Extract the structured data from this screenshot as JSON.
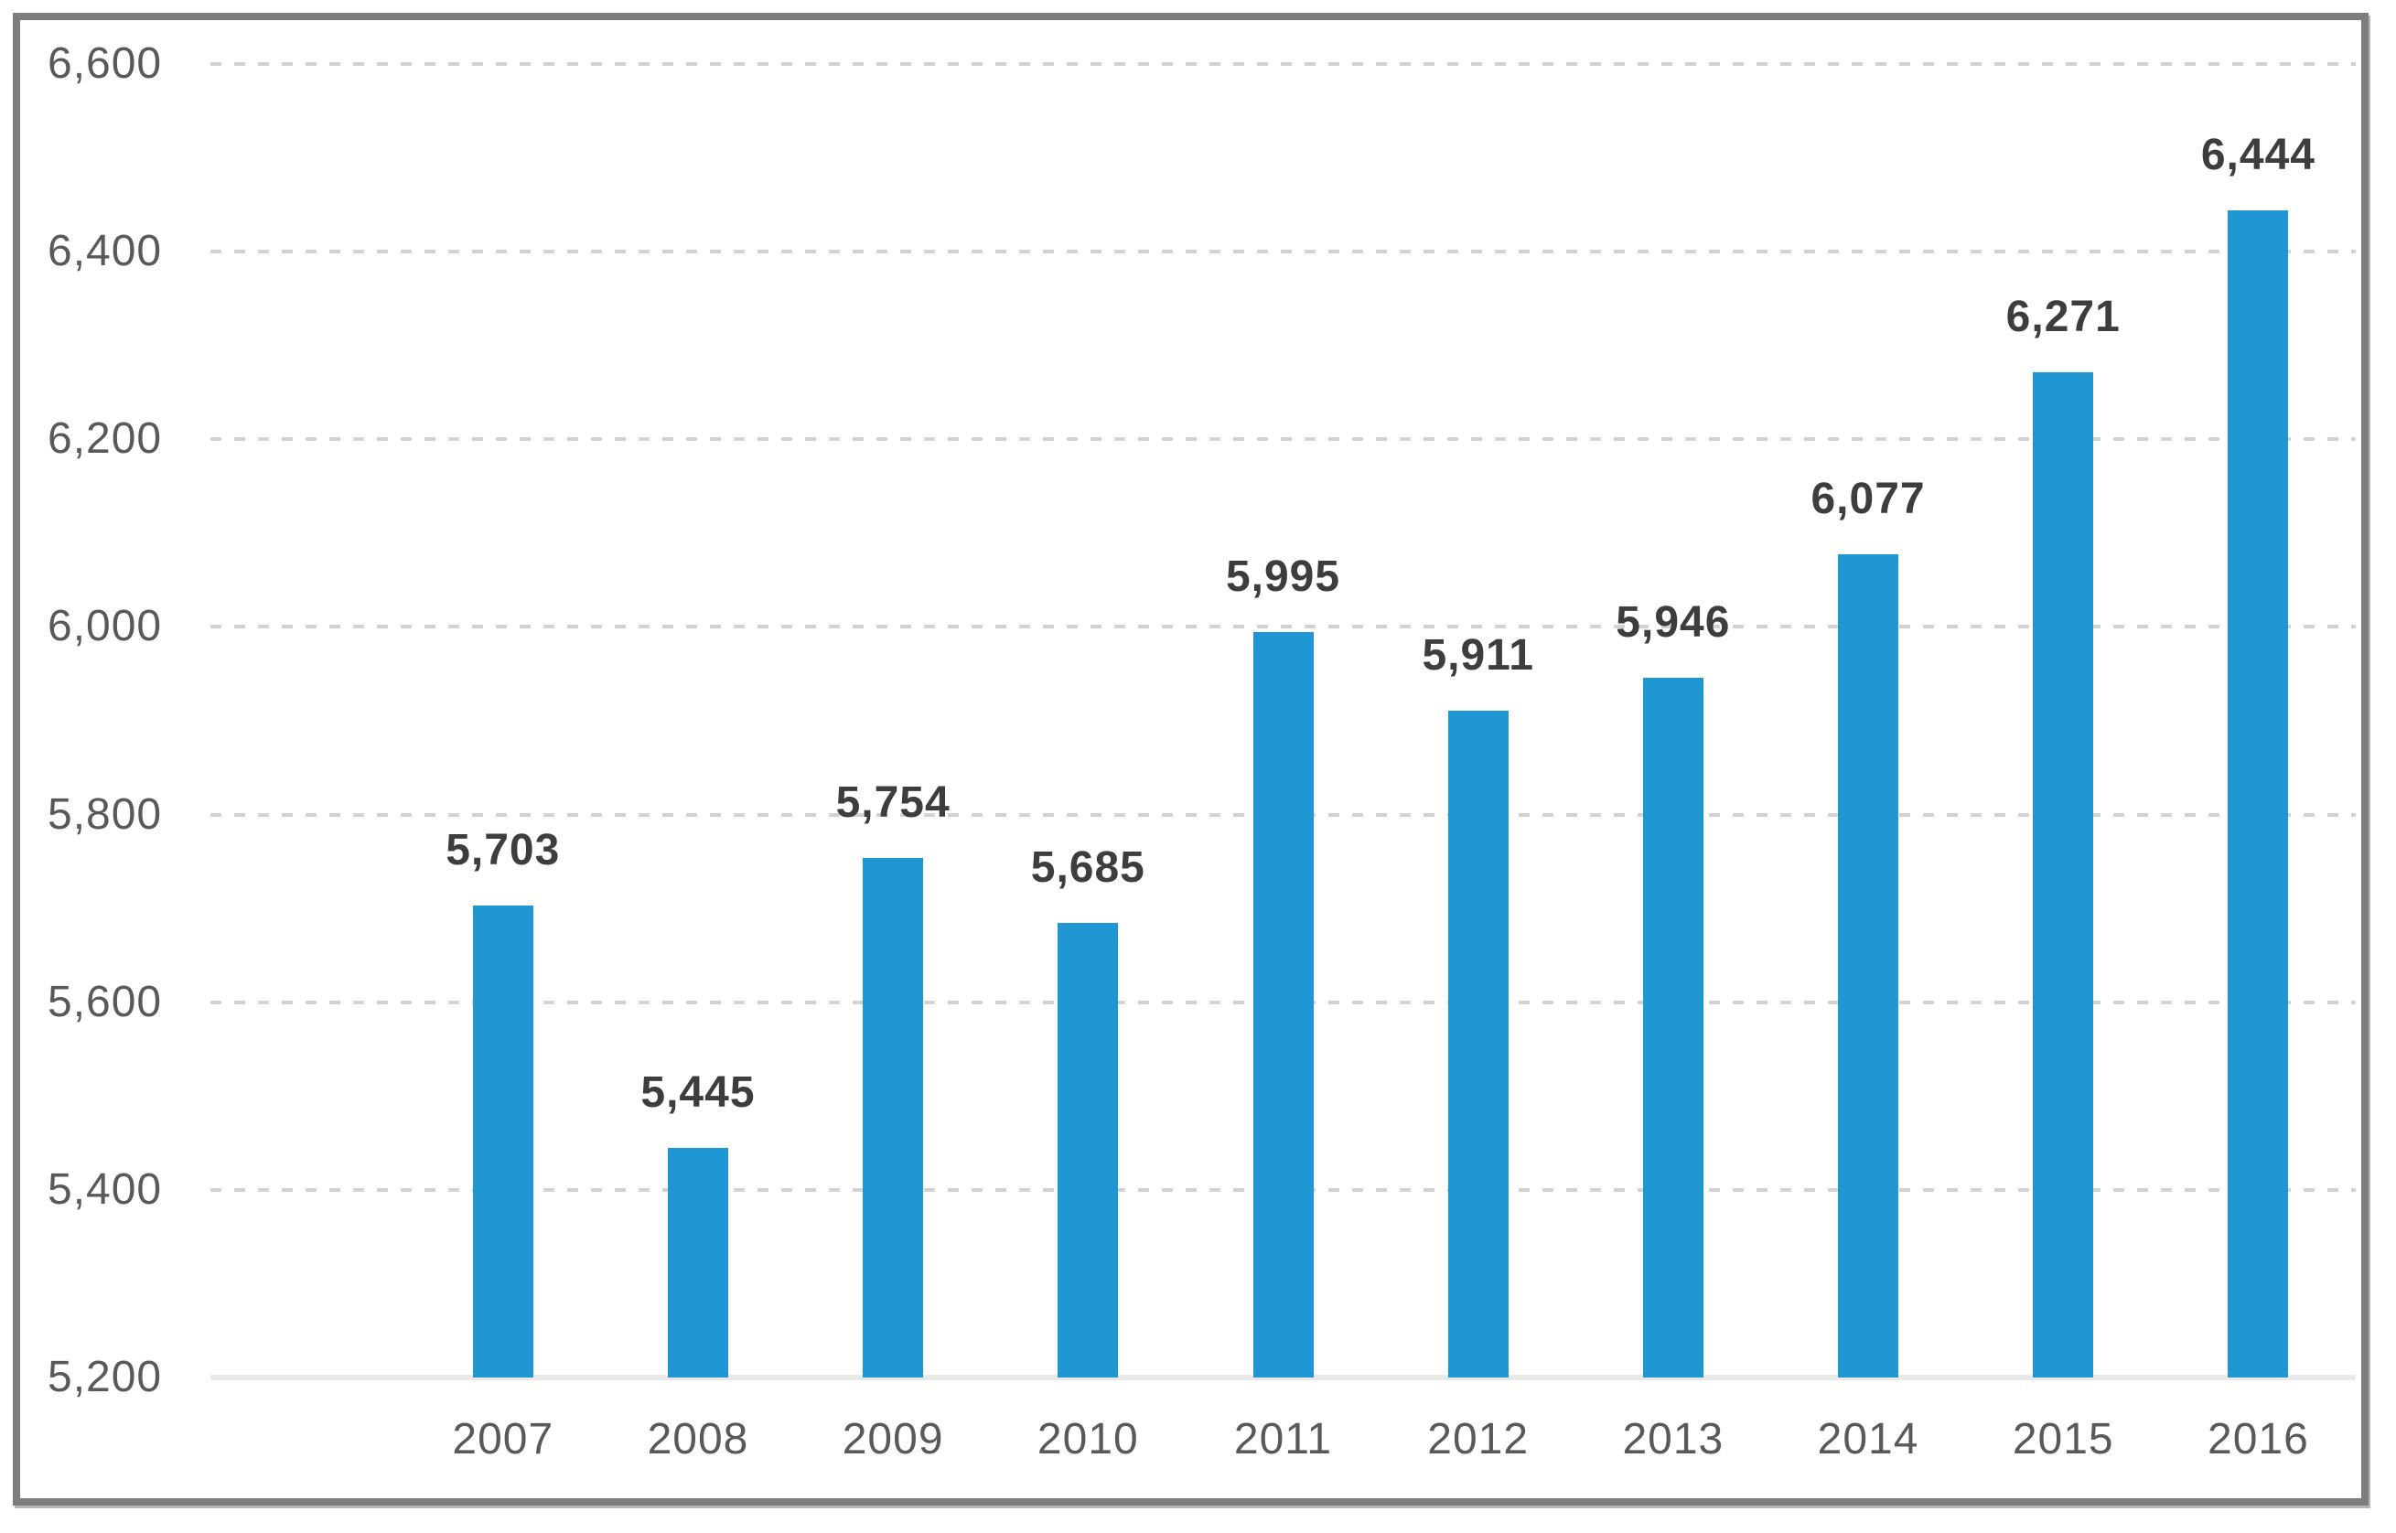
{
  "chart_data": {
    "type": "bar",
    "title": "",
    "xlabel": "",
    "ylabel": "",
    "categories": [
      "2007",
      "2008",
      "2009",
      "2010",
      "2011",
      "2012",
      "2013",
      "2014",
      "2015",
      "2016"
    ],
    "values": [
      5703,
      5445,
      5754,
      5685,
      5995,
      5911,
      5946,
      6077,
      6271,
      6444
    ],
    "value_labels": [
      "5,703",
      "5,445",
      "5,754",
      "5,685",
      "5,995",
      "5,911",
      "5,946",
      "6,077",
      "6,271",
      "6,444"
    ],
    "ylim": [
      5200,
      6600
    ],
    "ytick_step": 200,
    "yticks": [
      5200,
      5400,
      5600,
      5800,
      6000,
      6200,
      6400,
      6600
    ],
    "ytick_labels": [
      "5,200",
      "5,400",
      "5,600",
      "5,800",
      "6,000",
      "6,200",
      "6,400",
      "6,600"
    ],
    "grid": "horizontal-dashed",
    "legend": "none",
    "layout_hints": {
      "leading_empty_slots": 1,
      "data_labels_position": "above-bars"
    },
    "colors": {
      "bar": "#2096d3",
      "gridline": "#d2d2d2",
      "axis_baseline": "#e9e9e9",
      "tick_text": "#595959",
      "data_label_text": "#3d3d3d",
      "frame_border": "#7d7d7d",
      "background": "#ffffff"
    }
  }
}
